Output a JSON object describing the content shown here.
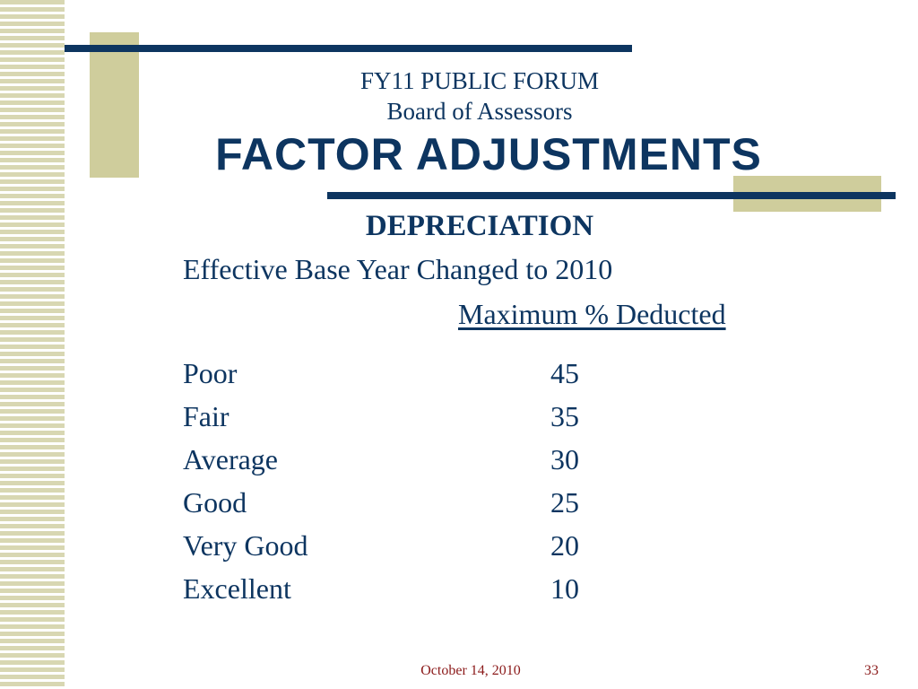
{
  "header": {
    "subtitle_1": "FY11 PUBLIC FORUM",
    "subtitle_2": "Board of Assessors",
    "title": "FACTOR ADJUSTMENTS"
  },
  "content": {
    "section_title": "DEPRECIATION",
    "intro": "Effective Base Year Changed to 2010",
    "column_header": "Maximum % Deducted",
    "rows": [
      {
        "label": "Poor",
        "value": "45"
      },
      {
        "label": "Fair",
        "value": "35"
      },
      {
        "label": "Average",
        "value": "30"
      },
      {
        "label": "Good",
        "value": "25"
      },
      {
        "label": "Very Good",
        "value": "20"
      },
      {
        "label": "Excellent",
        "value": "10"
      }
    ]
  },
  "footer": {
    "date": "October 14, 2010",
    "page_number": "33"
  },
  "colors": {
    "navy": "#0d3560",
    "khaki": "#cfcd9c",
    "stripe": "#d8d7b2",
    "footer_text": "#8b1a1a"
  }
}
